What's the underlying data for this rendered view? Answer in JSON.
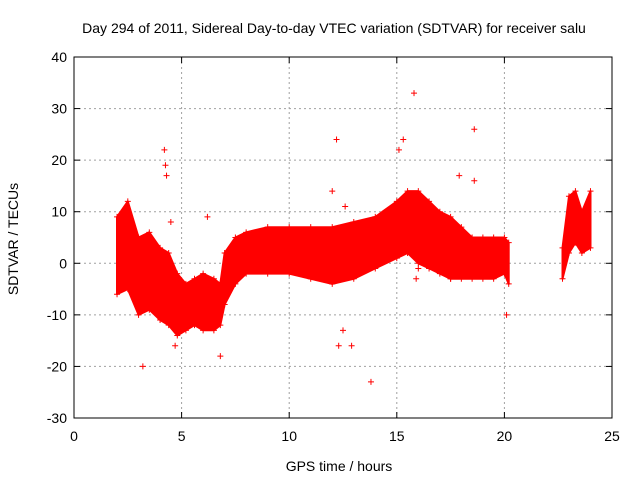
{
  "chart_data": {
    "type": "scatter",
    "title": "Day 294 of 2011, Sidereal Day-to-day VTEC variation (SDTVAR) for receiver salu",
    "xlabel": "GPS time / hours",
    "ylabel": "SDTVAR / TECUs",
    "xlim": [
      0,
      25
    ],
    "ylim": [
      -30,
      40
    ],
    "xticks": [
      "0",
      "5",
      "10",
      "15",
      "20",
      "25"
    ],
    "yticks": [
      "-30",
      "-20",
      "-10",
      "0",
      "10",
      "20",
      "30",
      "40"
    ],
    "grid": true,
    "marker": "+",
    "series_color": "#ff0000",
    "envelope": [
      {
        "x": 2.0,
        "lo": -6,
        "hi": 9
      },
      {
        "x": 2.5,
        "lo": -5,
        "hi": 12
      },
      {
        "x": 3.0,
        "lo": -10,
        "hi": 5
      },
      {
        "x": 3.5,
        "lo": -9,
        "hi": 6
      },
      {
        "x": 4.0,
        "lo": -11,
        "hi": 3
      },
      {
        "x": 4.4,
        "lo": -12,
        "hi": 2
      },
      {
        "x": 4.8,
        "lo": -14,
        "hi": -2
      },
      {
        "x": 5.2,
        "lo": -13,
        "hi": -4
      },
      {
        "x": 5.6,
        "lo": -12,
        "hi": -3
      },
      {
        "x": 6.0,
        "lo": -13,
        "hi": -2
      },
      {
        "x": 6.5,
        "lo": -13,
        "hi": -3
      },
      {
        "x": 6.8,
        "lo": -12,
        "hi": -4
      },
      {
        "x": 7.0,
        "lo": -8,
        "hi": 2
      },
      {
        "x": 7.5,
        "lo": -4,
        "hi": 5
      },
      {
        "x": 8.0,
        "lo": -2,
        "hi": 6
      },
      {
        "x": 9.0,
        "lo": -2,
        "hi": 7
      },
      {
        "x": 10.0,
        "lo": -2,
        "hi": 7
      },
      {
        "x": 11.0,
        "lo": -3,
        "hi": 7
      },
      {
        "x": 12.0,
        "lo": -4,
        "hi": 7
      },
      {
        "x": 13.0,
        "lo": -3,
        "hi": 8
      },
      {
        "x": 14.0,
        "lo": -1,
        "hi": 9
      },
      {
        "x": 15.0,
        "lo": 1,
        "hi": 12
      },
      {
        "x": 15.5,
        "lo": 2,
        "hi": 14
      },
      {
        "x": 16.0,
        "lo": 0,
        "hi": 14
      },
      {
        "x": 16.5,
        "lo": -1,
        "hi": 12
      },
      {
        "x": 17.0,
        "lo": -2,
        "hi": 10
      },
      {
        "x": 17.5,
        "lo": -3,
        "hi": 9
      },
      {
        "x": 18.0,
        "lo": -3,
        "hi": 7
      },
      {
        "x": 18.5,
        "lo": -3,
        "hi": 5
      },
      {
        "x": 19.0,
        "lo": -3,
        "hi": 5
      },
      {
        "x": 19.5,
        "lo": -3,
        "hi": 5
      },
      {
        "x": 20.0,
        "lo": -2,
        "hi": 5
      },
      {
        "x": 20.2,
        "lo": -4,
        "hi": 4
      },
      {
        "x": 22.7,
        "lo": -3,
        "hi": 3
      },
      {
        "x": 23.0,
        "lo": 2,
        "hi": 13
      },
      {
        "x": 23.3,
        "lo": 4,
        "hi": 14
      },
      {
        "x": 23.6,
        "lo": 2,
        "hi": 10
      },
      {
        "x": 24.0,
        "lo": 3,
        "hi": 14
      }
    ],
    "outliers": [
      {
        "x": 2.2,
        "y": 9.5
      },
      {
        "x": 3.2,
        "y": -20
      },
      {
        "x": 4.2,
        "y": 22
      },
      {
        "x": 4.25,
        "y": 19
      },
      {
        "x": 4.3,
        "y": 17
      },
      {
        "x": 4.5,
        "y": 8
      },
      {
        "x": 4.7,
        "y": -16
      },
      {
        "x": 6.2,
        "y": 9
      },
      {
        "x": 6.8,
        "y": -18
      },
      {
        "x": 12.0,
        "y": 14
      },
      {
        "x": 12.2,
        "y": 24
      },
      {
        "x": 12.3,
        "y": -16
      },
      {
        "x": 12.5,
        "y": -13
      },
      {
        "x": 12.9,
        "y": -16
      },
      {
        "x": 12.6,
        "y": 11
      },
      {
        "x": 13.8,
        "y": -23
      },
      {
        "x": 15.1,
        "y": 22
      },
      {
        "x": 15.3,
        "y": 24
      },
      {
        "x": 15.8,
        "y": 33
      },
      {
        "x": 15.9,
        "y": -3
      },
      {
        "x": 16.0,
        "y": -1
      },
      {
        "x": 17.5,
        "y": -3
      },
      {
        "x": 17.9,
        "y": 17
      },
      {
        "x": 18.6,
        "y": 26
      },
      {
        "x": 18.6,
        "y": 16
      },
      {
        "x": 20.1,
        "y": -10
      }
    ]
  }
}
